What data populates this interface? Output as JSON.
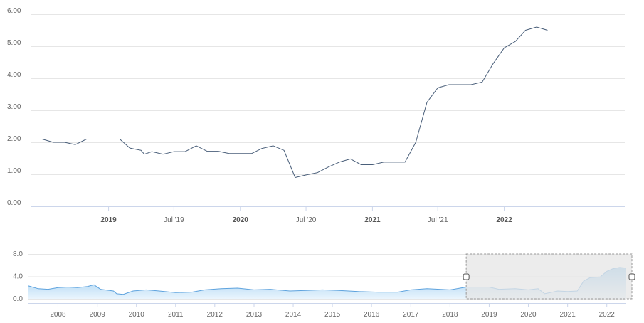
{
  "chart_data": [
    {
      "type": "line",
      "role": "main",
      "yticks": [
        "0.00",
        "1.00",
        "2.00",
        "3.00",
        "4.00",
        "5.00",
        "6.00"
      ],
      "ylim": [
        0,
        6
      ],
      "xlim": [
        "2018-06-01",
        "2022-12-01"
      ],
      "xticks": [
        {
          "label": "2019",
          "date": "2019-01-01",
          "bold": true
        },
        {
          "label": "Jul '19",
          "date": "2019-07-01",
          "bold": false
        },
        {
          "label": "2020",
          "date": "2020-01-01",
          "bold": true
        },
        {
          "label": "Jul '20",
          "date": "2020-07-01",
          "bold": false
        },
        {
          "label": "2021",
          "date": "2021-01-01",
          "bold": true
        },
        {
          "label": "Jul '21",
          "date": "2021-07-01",
          "bold": false
        },
        {
          "label": "2022",
          "date": "2022-01-01",
          "bold": true
        }
      ],
      "grid": true,
      "line_color": "#4a5f7a",
      "series": [
        {
          "points": [
            [
              "2018-06-01",
              2.1
            ],
            [
              "2018-07-01",
              2.1
            ],
            [
              "2018-08-01",
              2.0
            ],
            [
              "2018-09-01",
              2.0
            ],
            [
              "2018-10-01",
              1.93
            ],
            [
              "2018-11-01",
              2.1
            ],
            [
              "2018-12-01",
              2.1
            ],
            [
              "2019-01-01",
              2.1
            ],
            [
              "2019-02-01",
              2.1
            ],
            [
              "2019-03-01",
              1.82
            ],
            [
              "2019-04-01",
              1.75
            ],
            [
              "2019-04-10",
              1.63
            ],
            [
              "2019-05-01",
              1.71
            ],
            [
              "2019-06-01",
              1.63
            ],
            [
              "2019-07-01",
              1.71
            ],
            [
              "2019-08-01",
              1.71
            ],
            [
              "2019-09-01",
              1.89
            ],
            [
              "2019-10-01",
              1.72
            ],
            [
              "2019-11-01",
              1.72
            ],
            [
              "2019-12-01",
              1.65
            ],
            [
              "2020-01-01",
              1.65
            ],
            [
              "2020-02-01",
              1.65
            ],
            [
              "2020-03-01",
              1.81
            ],
            [
              "2020-04-01",
              1.89
            ],
            [
              "2020-05-01",
              1.75
            ],
            [
              "2020-06-01",
              0.9
            ],
            [
              "2020-07-01",
              0.98
            ],
            [
              "2020-08-01",
              1.05
            ],
            [
              "2020-09-01",
              1.23
            ],
            [
              "2020-10-01",
              1.38
            ],
            [
              "2020-11-01",
              1.48
            ],
            [
              "2020-12-01",
              1.3
            ],
            [
              "2021-01-01",
              1.3
            ],
            [
              "2021-02-01",
              1.38
            ],
            [
              "2021-03-01",
              1.38
            ],
            [
              "2021-04-01",
              1.38
            ],
            [
              "2021-05-01",
              2.0
            ],
            [
              "2021-06-01",
              3.25
            ],
            [
              "2021-07-01",
              3.7
            ],
            [
              "2021-08-01",
              3.8
            ],
            [
              "2021-09-01",
              3.8
            ],
            [
              "2021-10-01",
              3.8
            ],
            [
              "2021-11-01",
              3.88
            ],
            [
              "2021-12-01",
              4.45
            ],
            [
              "2022-01-01",
              4.95
            ],
            [
              "2022-02-01",
              5.15
            ],
            [
              "2022-03-01",
              5.5
            ],
            [
              "2022-04-01",
              5.6
            ],
            [
              "2022-05-01",
              5.5
            ]
          ]
        }
      ]
    },
    {
      "type": "area",
      "role": "navigator",
      "yticks": [
        "0.0",
        "4.0",
        "8.0"
      ],
      "ylim": [
        0,
        8
      ],
      "xlim": [
        "2007-04-01",
        "2022-07-01"
      ],
      "xticks": [
        "2008",
        "2009",
        "2010",
        "2011",
        "2012",
        "2013",
        "2014",
        "2015",
        "2016",
        "2017",
        "2018",
        "2019",
        "2020",
        "2021",
        "2022"
      ],
      "selection": [
        "2018-06-01",
        "2022-07-01"
      ],
      "line_color": "#5ea3de",
      "fill_top": "#8cc4ee",
      "fill_bottom": "#eaf5fd",
      "selection_fill": "#e6e6e6",
      "series": [
        {
          "points": [
            [
              "2007-04-01",
              2.3
            ],
            [
              "2007-07-01",
              1.8
            ],
            [
              "2007-10-01",
              1.7
            ],
            [
              "2008-01-01",
              2.0
            ],
            [
              "2008-04-01",
              2.1
            ],
            [
              "2008-07-01",
              2.0
            ],
            [
              "2008-10-01",
              2.2
            ],
            [
              "2008-12-01",
              2.5
            ],
            [
              "2009-02-01",
              1.7
            ],
            [
              "2009-06-01",
              1.4
            ],
            [
              "2009-07-01",
              0.9
            ],
            [
              "2009-09-01",
              0.8
            ],
            [
              "2009-12-01",
              1.4
            ],
            [
              "2010-04-01",
              1.6
            ],
            [
              "2010-08-01",
              1.4
            ],
            [
              "2011-01-01",
              1.1
            ],
            [
              "2011-06-01",
              1.2
            ],
            [
              "2011-10-01",
              1.6
            ],
            [
              "2012-03-01",
              1.8
            ],
            [
              "2012-08-01",
              1.9
            ],
            [
              "2013-01-01",
              1.6
            ],
            [
              "2013-06-01",
              1.7
            ],
            [
              "2013-12-01",
              1.4
            ],
            [
              "2014-05-01",
              1.5
            ],
            [
              "2014-10-01",
              1.6
            ],
            [
              "2015-03-01",
              1.5
            ],
            [
              "2015-09-01",
              1.3
            ],
            [
              "2016-03-01",
              1.2
            ],
            [
              "2016-09-01",
              1.2
            ],
            [
              "2017-01-01",
              1.6
            ],
            [
              "2017-06-01",
              1.8
            ],
            [
              "2018-01-01",
              1.6
            ],
            [
              "2018-06-01",
              2.1
            ],
            [
              "2019-01-01",
              2.1
            ],
            [
              "2019-04-01",
              1.7
            ],
            [
              "2019-09-01",
              1.8
            ],
            [
              "2020-01-01",
              1.6
            ],
            [
              "2020-04-01",
              1.8
            ],
            [
              "2020-06-01",
              0.9
            ],
            [
              "2020-10-01",
              1.4
            ],
            [
              "2021-01-01",
              1.3
            ],
            [
              "2021-04-01",
              1.4
            ],
            [
              "2021-06-01",
              3.2
            ],
            [
              "2021-08-01",
              3.8
            ],
            [
              "2021-11-01",
              3.9
            ],
            [
              "2022-01-01",
              4.9
            ],
            [
              "2022-03-01",
              5.4
            ],
            [
              "2022-05-01",
              5.6
            ],
            [
              "2022-07-01",
              5.5
            ]
          ]
        }
      ]
    }
  ]
}
